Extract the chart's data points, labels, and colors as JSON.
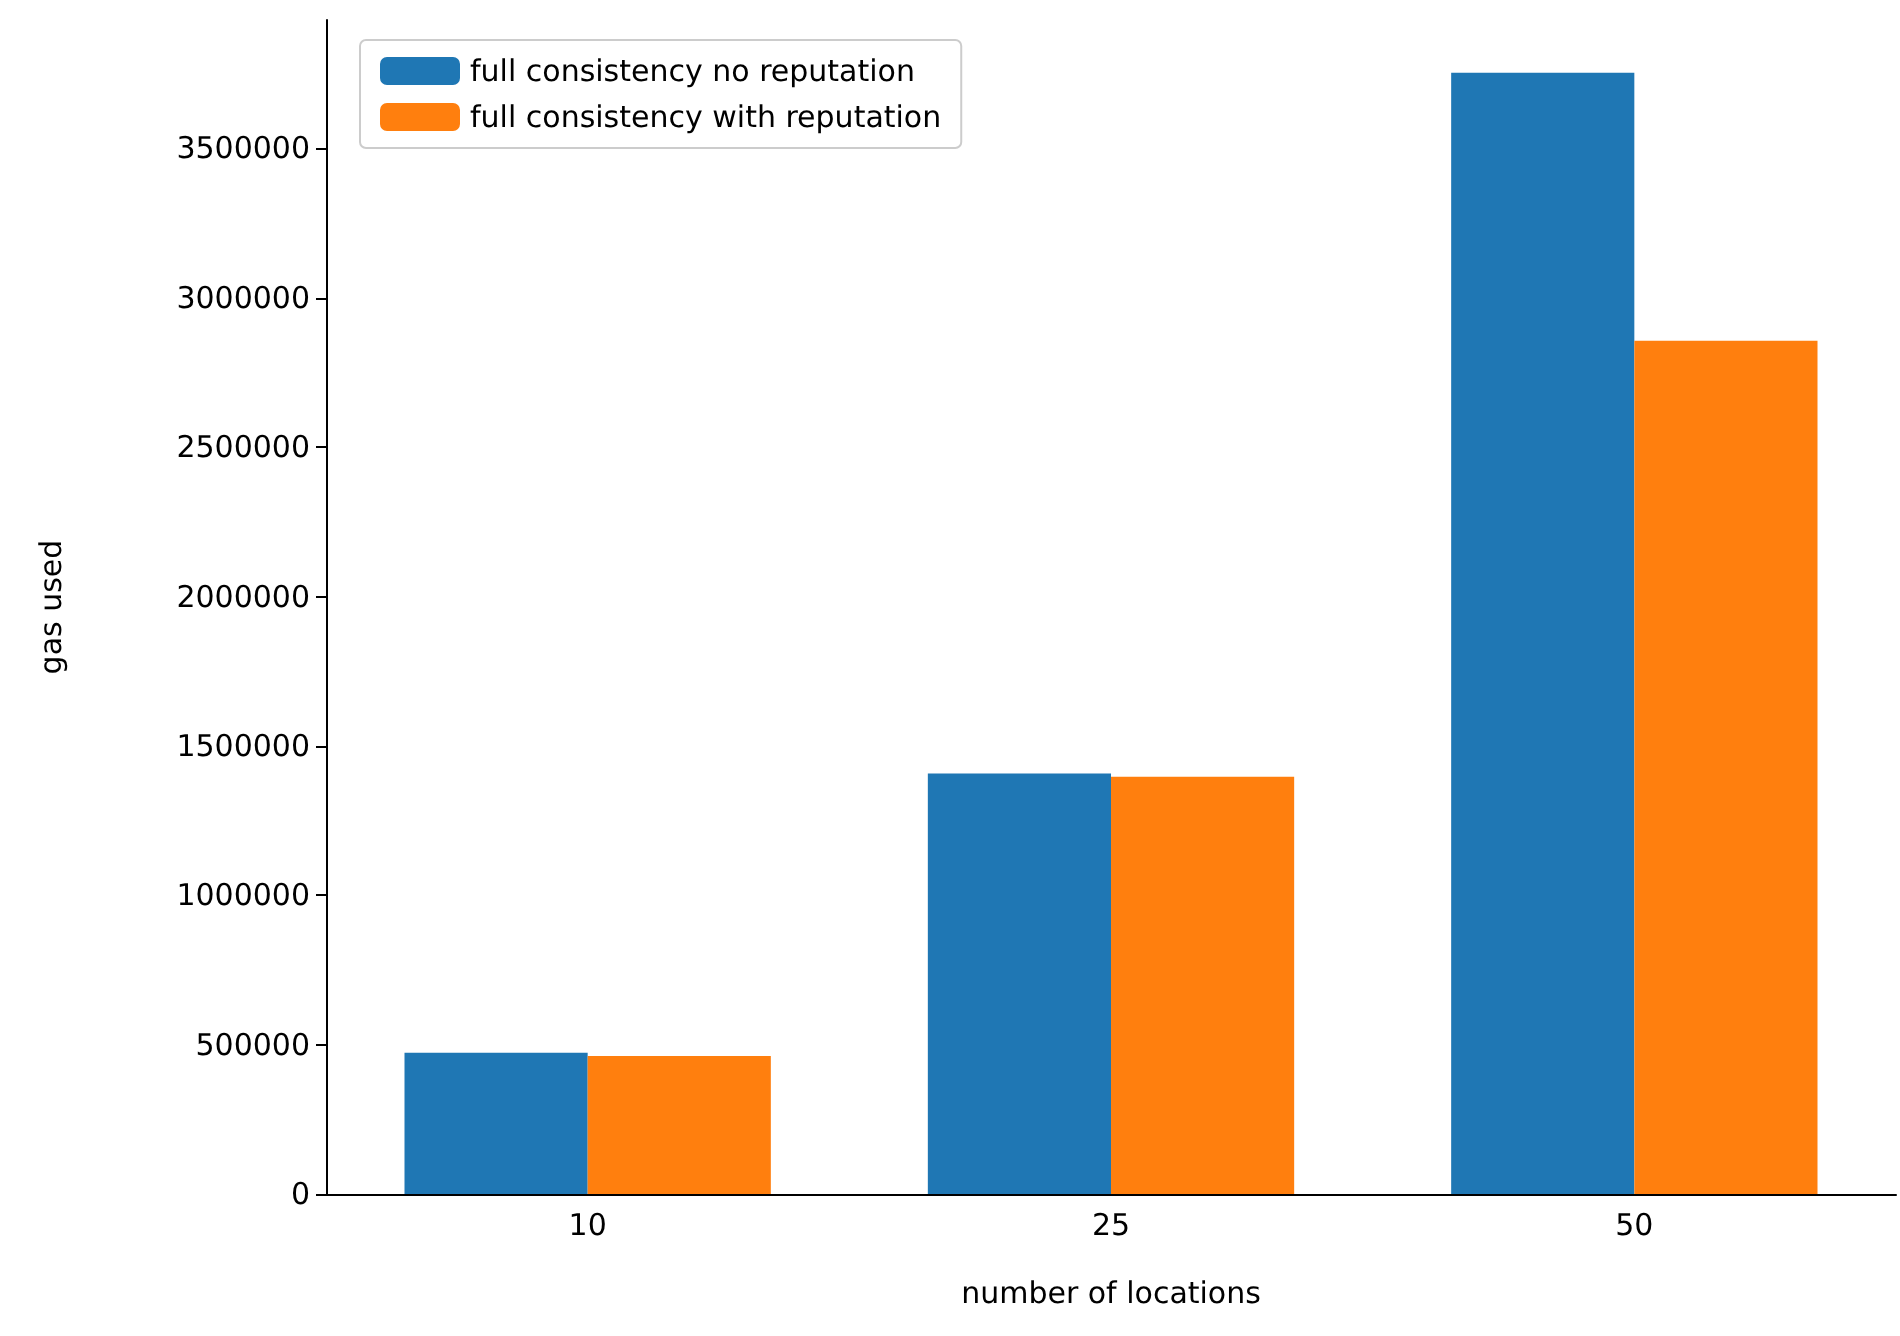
{
  "chart_data": {
    "type": "bar",
    "xlabel": "number of locations",
    "ylabel": "gas used",
    "categories": [
      "10",
      "25",
      "50"
    ],
    "series": [
      {
        "name": "full consistency no reputation",
        "color": "#1f77b4",
        "values": [
          473000,
          1408000,
          3753000
        ]
      },
      {
        "name": "full consistency with reputation",
        "color": "#ff7f0e",
        "values": [
          462000,
          1397000,
          2856000
        ]
      }
    ],
    "ylim": [
      0,
      3930000
    ],
    "yticks": [
      0,
      500000,
      1000000,
      1500000,
      2000000,
      2500000,
      3000000,
      3500000
    ],
    "legend": "top left",
    "grid": false
  }
}
